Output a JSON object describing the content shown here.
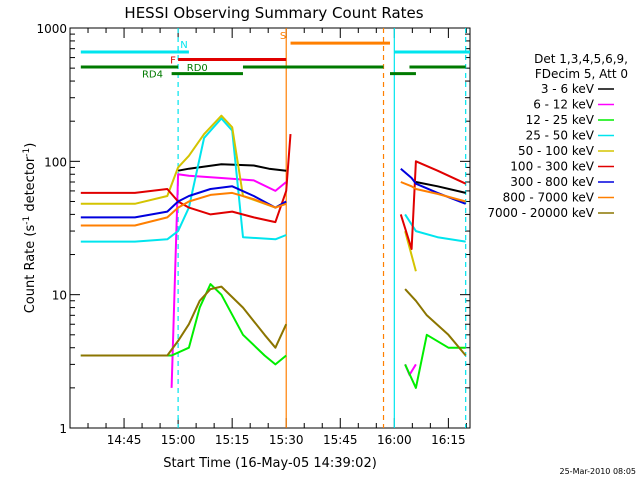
{
  "chart_data": {
    "type": "line",
    "title": "HESSI Observing Summary Count Rates",
    "xlabel": "Start Time (16-May-05 14:39:02)",
    "ylabel_main": "Count Rate (s",
    "ylabel_sup": "-1",
    "ylabel_mid": " detector",
    "ylabel_sup2": "-1",
    "ylabel_end": ")",
    "y_scale": "log",
    "ylim": [
      1,
      1000
    ],
    "xlim_minutes": [
      14.5,
      16.35
    ],
    "x_tick_labels": [
      "14:45",
      "15:00",
      "15:15",
      "15:30",
      "15:45",
      "16:00",
      "16:15"
    ],
    "y_tick_labels": [
      "1",
      "10",
      "100",
      "1000"
    ],
    "timestamp": "25-Mar-2010 08:05",
    "legend_header_1": "Det 1,3,4,5,6,9,",
    "legend_header_2": "FDecim 5, Att 0",
    "flags": [
      {
        "name": "N",
        "color": "#00e5ee",
        "level": 660,
        "segments": [
          [
            14.55,
            15.05
          ],
          [
            16.0,
            16.35
          ]
        ]
      },
      {
        "name": "F",
        "color": "#e00000",
        "level": 580,
        "segments": [
          [
            15.0,
            15.5
          ]
        ]
      },
      {
        "name": "S",
        "color": "#ff7f00",
        "level": 770,
        "segments": [
          [
            15.52,
            15.98
          ]
        ]
      },
      {
        "name": "RD0",
        "color": "#007a00",
        "level": 510,
        "segments": [
          [
            14.55,
            15.0
          ],
          [
            15.3,
            15.95
          ],
          [
            16.07,
            16.33
          ]
        ]
      },
      {
        "name": "RD4",
        "color": "#007a00",
        "level": 455,
        "segments": [
          [
            14.97,
            15.3
          ],
          [
            15.98,
            16.1
          ]
        ]
      }
    ],
    "vlines": [
      {
        "t": 15.0,
        "color": "#00e5ee",
        "style": "dashed"
      },
      {
        "t": 15.5,
        "color": "#ff7f00",
        "style": "solid"
      },
      {
        "t": 15.95,
        "color": "#ff7f00",
        "style": "dashed"
      },
      {
        "t": 16.0,
        "color": "#00e5ee",
        "style": "solid"
      },
      {
        "t": 16.33,
        "color": "#00e5ee",
        "style": "dashed"
      }
    ],
    "series": [
      {
        "name": "3 - 6 keV",
        "color": "#000000",
        "x": [
          14.55,
          14.9,
          15.0,
          15.05,
          15.2,
          15.35,
          15.42,
          15.5,
          16.05,
          16.1,
          16.2,
          16.33
        ],
        "y": [
          null,
          null,
          85,
          88,
          95,
          93,
          88,
          85,
          null,
          70,
          65,
          58
        ]
      },
      {
        "name": "6 - 12 keV",
        "color": "#ff00ff",
        "x": [
          14.55,
          14.97,
          15.0,
          15.05,
          15.2,
          15.35,
          15.45,
          15.5,
          16.0,
          16.05,
          16.07,
          16.1,
          16.2,
          16.33
        ],
        "y": [
          null,
          2,
          80,
          78,
          75,
          72,
          60,
          70,
          null,
          3,
          2.5,
          3,
          null,
          null
        ]
      },
      {
        "name": "12 - 25 keV",
        "color": "#00ee00",
        "x": [
          14.55,
          14.8,
          14.97,
          15.05,
          15.1,
          15.15,
          15.2,
          15.3,
          15.4,
          15.45,
          15.5,
          16.0,
          16.05,
          16.1,
          16.15,
          16.25,
          16.33
        ],
        "y": [
          3.5,
          3.5,
          3.5,
          4,
          8,
          12,
          10,
          5,
          3.5,
          3,
          3.5,
          null,
          3,
          2,
          5,
          4,
          4
        ]
      },
      {
        "name": "25 - 50 keV",
        "color": "#00e5ee",
        "x": [
          14.55,
          14.8,
          14.95,
          15.0,
          15.05,
          15.12,
          15.2,
          15.25,
          15.3,
          15.45,
          15.5,
          16.0,
          16.05,
          16.1,
          16.2,
          16.33
        ],
        "y": [
          25,
          25,
          26,
          30,
          45,
          150,
          210,
          170,
          27,
          26,
          28,
          null,
          40,
          30,
          27,
          25
        ]
      },
      {
        "name": "50 - 100 keV",
        "color": "#d4c400",
        "x": [
          14.55,
          14.8,
          14.95,
          15.0,
          15.05,
          15.12,
          15.2,
          15.25,
          15.3,
          15.45,
          15.5,
          16.0,
          16.05,
          16.1,
          16.2,
          16.33
        ],
        "y": [
          48,
          48,
          55,
          90,
          110,
          160,
          220,
          180,
          55,
          45,
          50,
          null,
          30,
          15,
          null,
          null
        ]
      },
      {
        "name": "100 - 300 keV",
        "color": "#e00000",
        "x": [
          14.55,
          14.8,
          14.95,
          15.0,
          15.05,
          15.15,
          15.25,
          15.35,
          15.45,
          15.5,
          15.52,
          16.0,
          16.03,
          16.08,
          16.1,
          16.2,
          16.33
        ],
        "y": [
          58,
          58,
          62,
          50,
          45,
          40,
          42,
          38,
          35,
          60,
          160,
          null,
          40,
          22,
          100,
          85,
          68
        ]
      },
      {
        "name": "300 - 800 keV",
        "color": "#0000dd",
        "x": [
          14.55,
          14.8,
          14.95,
          15.0,
          15.05,
          15.15,
          15.25,
          15.35,
          15.45,
          15.5,
          16.0,
          16.03,
          16.08,
          16.1,
          16.2,
          16.33
        ],
        "y": [
          38,
          38,
          42,
          50,
          55,
          62,
          65,
          55,
          45,
          50,
          null,
          88,
          75,
          68,
          58,
          48
        ]
      },
      {
        "name": "800 - 7000 keV",
        "color": "#ff7f00",
        "x": [
          14.55,
          14.8,
          14.95,
          15.0,
          15.05,
          15.15,
          15.25,
          15.35,
          15.45,
          15.5,
          16.0,
          16.03,
          16.08,
          16.1,
          16.2,
          16.33
        ],
        "y": [
          33,
          33,
          38,
          45,
          50,
          56,
          58,
          52,
          45,
          48,
          null,
          70,
          65,
          62,
          57,
          50
        ]
      },
      {
        "name": "7000 - 20000 keV",
        "color": "#8b7500",
        "x": [
          14.55,
          14.8,
          14.95,
          15.0,
          15.05,
          15.1,
          15.15,
          15.2,
          15.3,
          15.4,
          15.45,
          15.5,
          16.0,
          16.05,
          16.1,
          16.15,
          16.25,
          16.33
        ],
        "y": [
          3.5,
          3.5,
          3.5,
          4.5,
          6,
          9,
          11,
          11.5,
          8,
          5,
          4,
          6,
          null,
          11,
          9,
          7,
          5,
          3.5
        ]
      }
    ]
  }
}
